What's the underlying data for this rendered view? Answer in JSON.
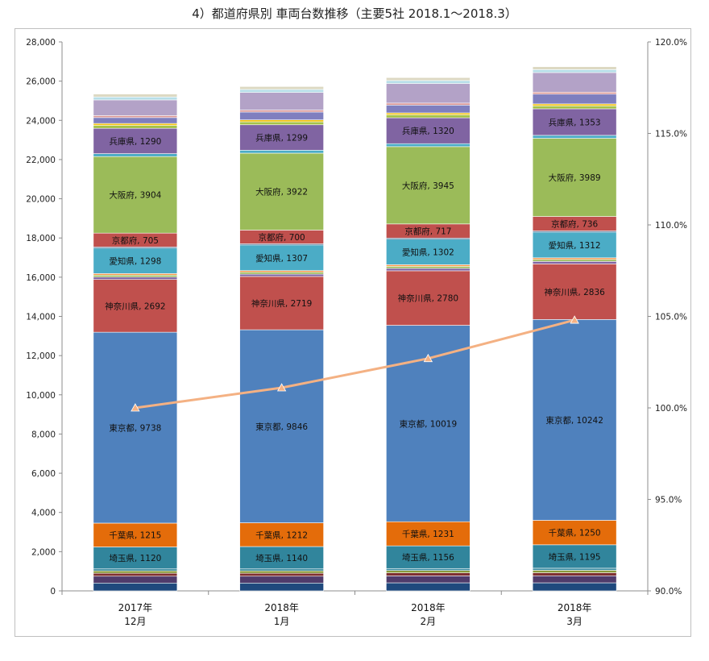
{
  "chart_data": {
    "type": "bar",
    "stacked": true,
    "title": "4）都道府県別 車両台数推移（主要5社 2018.1～2018.3）",
    "categories": [
      [
        "2017年",
        "12月"
      ],
      [
        "2018年",
        "1月"
      ],
      [
        "2018年",
        "2月"
      ],
      [
        "2018年",
        "3月"
      ]
    ],
    "ylim": [
      0,
      28000
    ],
    "y_ticks": [
      "0",
      "2,000",
      "4,000",
      "6,000",
      "8,000",
      "10,000",
      "12,000",
      "14,000",
      "16,000",
      "18,000",
      "20,000",
      "22,000",
      "24,000",
      "26,000",
      "28,000"
    ],
    "y2lim": [
      90,
      120
    ],
    "y2_ticks": [
      "90.0%",
      "95.0%",
      "100.0%",
      "105.0%",
      "110.0%",
      "115.0%",
      "120.0%"
    ],
    "grid": false,
    "series": [
      {
        "name": "",
        "color": "#1F497D",
        "values": [
          400,
          400,
          410,
          410
        ],
        "labeled": false
      },
      {
        "name": "",
        "color": "#4F3B6B",
        "values": [
          350,
          350,
          355,
          360
        ],
        "labeled": false
      },
      {
        "name": "",
        "color": "#7F2F2F",
        "values": [
          150,
          150,
          155,
          155
        ],
        "labeled": false
      },
      {
        "name": "",
        "color": "#8A9A3B",
        "values": [
          120,
          120,
          120,
          125
        ],
        "labeled": false
      },
      {
        "name": "",
        "color": "#3A8BA0",
        "values": [
          100,
          100,
          100,
          105
        ],
        "labeled": false
      },
      {
        "name": "埼玉県",
        "color": "#31859C",
        "values": [
          1120,
          1140,
          1156,
          1195
        ],
        "labeled": true
      },
      {
        "name": "千葉県",
        "color": "#E46C0A",
        "values": [
          1215,
          1212,
          1231,
          1250
        ],
        "labeled": true
      },
      {
        "name": "東京都",
        "color": "#4F81BD",
        "values": [
          9738,
          9846,
          10019,
          10242
        ],
        "labeled": true
      },
      {
        "name": "神奈川県",
        "color": "#C0504D",
        "values": [
          2692,
          2719,
          2780,
          2836
        ],
        "labeled": true
      },
      {
        "name": "",
        "color": "#8064A2",
        "values": [
          120,
          120,
          125,
          125
        ],
        "labeled": false
      },
      {
        "name": "",
        "color": "#9BBB59",
        "values": [
          100,
          100,
          100,
          100
        ],
        "labeled": false
      },
      {
        "name": "",
        "color": "#F79646",
        "values": [
          80,
          80,
          85,
          85
        ],
        "labeled": false
      },
      {
        "name": "愛知県",
        "color": "#4BACC6",
        "values": [
          1298,
          1307,
          1302,
          1312
        ],
        "labeled": true
      },
      {
        "name": "",
        "color": "#2C4D75",
        "values": [
          60,
          60,
          60,
          60
        ],
        "labeled": false
      },
      {
        "name": "京都府",
        "color": "#C0504D",
        "values": [
          705,
          700,
          717,
          736
        ],
        "labeled": true
      },
      {
        "name": "大阪府",
        "color": "#9BBB59",
        "values": [
          3904,
          3922,
          3945,
          3989
        ],
        "labeled": true
      },
      {
        "name": "",
        "color": "#4BACC6",
        "values": [
          150,
          150,
          150,
          150
        ],
        "labeled": false
      },
      {
        "name": "兵庫県",
        "color": "#8064A2",
        "values": [
          1290,
          1299,
          1320,
          1353
        ],
        "labeled": true
      },
      {
        "name": "",
        "color": "#A5C249",
        "values": [
          150,
          150,
          150,
          150
        ],
        "labeled": false
      },
      {
        "name": "",
        "color": "#F2C314",
        "values": [
          100,
          100,
          100,
          100
        ],
        "labeled": false
      },
      {
        "name": "",
        "color": "#7F7FBF",
        "values": [
          300,
          400,
          400,
          500
        ],
        "labeled": false
      },
      {
        "name": "",
        "color": "#D99694",
        "values": [
          100,
          100,
          100,
          100
        ],
        "labeled": false
      },
      {
        "name": "",
        "color": "#B3A2C7",
        "values": [
          800,
          900,
          1000,
          1000
        ],
        "labeled": false
      },
      {
        "name": "",
        "color": "#B7DEE8",
        "values": [
          150,
          150,
          150,
          150
        ],
        "labeled": false
      },
      {
        "name": "",
        "color": "#DDD9C3",
        "values": [
          150,
          150,
          150,
          150
        ],
        "labeled": false
      }
    ],
    "line": {
      "color": "#F4B183",
      "axis": "right",
      "values": [
        100.0,
        101.1,
        102.7,
        104.8
      ],
      "marker": "triangle"
    }
  }
}
